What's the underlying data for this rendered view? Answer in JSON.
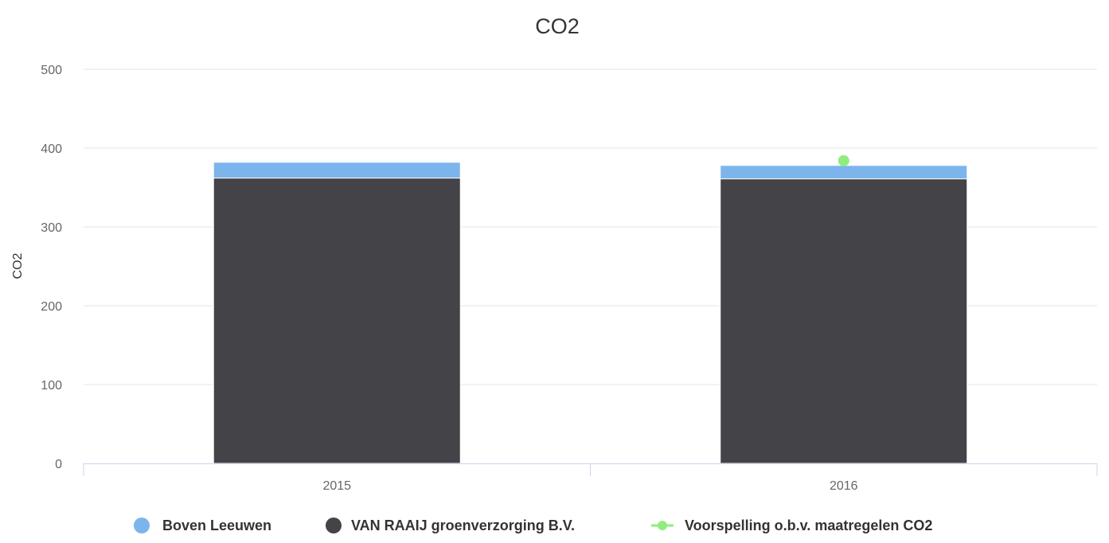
{
  "chart_data": {
    "type": "bar",
    "stacked": true,
    "title": "CO2",
    "xlabel": "",
    "ylabel": "CO2",
    "ylim": [
      0,
      500
    ],
    "yticks": [
      0,
      100,
      200,
      300,
      400,
      500
    ],
    "categories": [
      "2015",
      "2016"
    ],
    "series": [
      {
        "name": "Boven Leeuwen",
        "type": "bar",
        "color": "#7cb5ec",
        "values": [
          20,
          17
        ]
      },
      {
        "name": "VAN RAAIJ groenverzorging B.V.",
        "type": "bar",
        "color": "#434348",
        "values": [
          362,
          361
        ]
      },
      {
        "name": "Voorspelling o.b.v. maatregelen CO2",
        "type": "line",
        "color": "#90ed7d",
        "values": [
          null,
          384
        ]
      }
    ],
    "grid": true,
    "legend": "bottom-center"
  }
}
